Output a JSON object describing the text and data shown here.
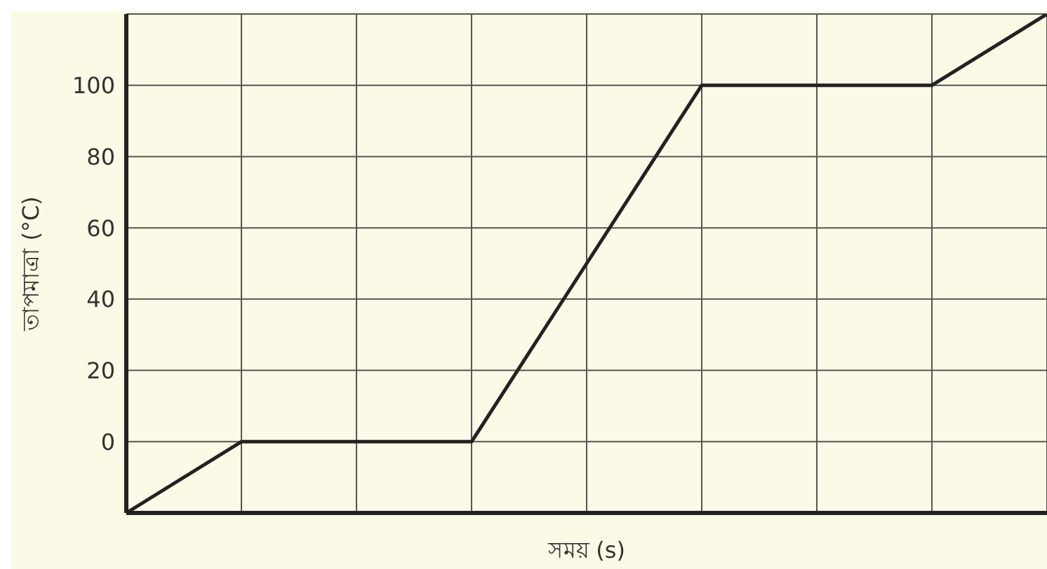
{
  "chart_data": {
    "type": "line",
    "xlabel": "সময় (s)",
    "ylabel": "তাপমাত্রা (°C)",
    "categories": [
      null,
      null,
      null,
      null,
      null,
      null,
      null,
      null,
      null
    ],
    "series": [
      {
        "color": "#222222",
        "values": [
          -20,
          0,
          0,
          0,
          50,
          100,
          100,
          100,
          120
        ]
      }
    ],
    "ylim": [
      -20,
      120
    ],
    "yticks": [
      0,
      20,
      40,
      60,
      80,
      100
    ],
    "grid": true,
    "marker": "none",
    "line_style": "solid",
    "tick_labels": "y"
  }
}
